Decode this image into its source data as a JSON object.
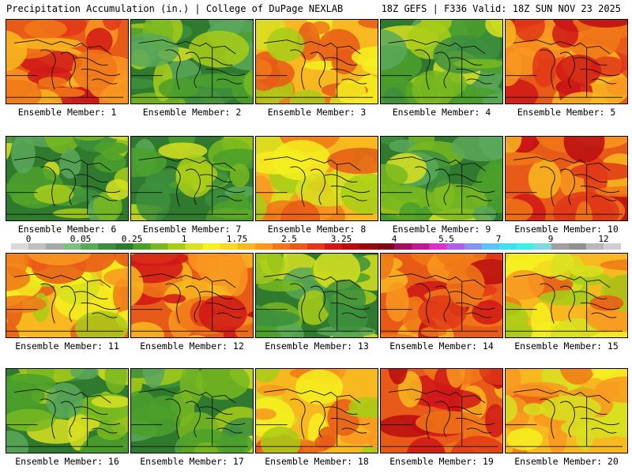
{
  "header": {
    "title": "Precipitation Accumulation (in.) | College of DuPage NEXLAB",
    "valid": "18Z GEFS | F336 Valid: 18Z SUN NOV 23 2025"
  },
  "colors": {
    "scale": [
      "#d8d8d8",
      "#c0c0c0",
      "#a8a8a8",
      "#7fbf7f",
      "#5aa85a",
      "#3d8f3d",
      "#2f7a2f",
      "#4ba02a",
      "#78b820",
      "#a8cc18",
      "#d8e020",
      "#f5f020",
      "#f8d820",
      "#f8b820",
      "#f89820",
      "#f07818",
      "#e85a18",
      "#e03818",
      "#d01818",
      "#b80c10",
      "#980808",
      "#800418",
      "#a0105a",
      "#c01890",
      "#d830c8",
      "#b060e8",
      "#8890f0",
      "#60c0f8",
      "#40e0f0",
      "#40f0e0",
      "#80d8e0",
      "#a0a0a0",
      "#909090",
      "#b8b8b8",
      "#d0d0d0"
    ]
  },
  "scale": {
    "labels": [
      "0",
      "0.05",
      "0.25",
      "1",
      "1.75",
      "2.5",
      "3.25",
      "4",
      "5.5",
      "7",
      "9",
      "12"
    ]
  },
  "members": [
    {
      "label": "Ensemble Member: 1",
      "palette": "red"
    },
    {
      "label": "Ensemble Member: 2",
      "palette": "green"
    },
    {
      "label": "Ensemble Member: 3",
      "palette": "orange"
    },
    {
      "label": "Ensemble Member: 4",
      "palette": "green"
    },
    {
      "label": "Ensemble Member: 5",
      "palette": "red"
    },
    {
      "label": "Ensemble Member: 6",
      "palette": "green"
    },
    {
      "label": "Ensemble Member: 7",
      "palette": "green"
    },
    {
      "label": "Ensemble Member: 8",
      "palette": "orange"
    },
    {
      "label": "Ensemble Member: 9",
      "palette": "green"
    },
    {
      "label": "Ensemble Member: 10",
      "palette": "red"
    },
    {
      "label": "Ensemble Member: 11",
      "palette": "orange"
    },
    {
      "label": "Ensemble Member: 12",
      "palette": "red"
    },
    {
      "label": "Ensemble Member: 13",
      "palette": "green"
    },
    {
      "label": "Ensemble Member: 14",
      "palette": "red"
    },
    {
      "label": "Ensemble Member: 15",
      "palette": "orange"
    },
    {
      "label": "Ensemble Member: 16",
      "palette": "green"
    },
    {
      "label": "Ensemble Member: 17",
      "palette": "green"
    },
    {
      "label": "Ensemble Member: 18",
      "palette": "orange"
    },
    {
      "label": "Ensemble Member: 19",
      "palette": "red"
    },
    {
      "label": "Ensemble Member: 20",
      "palette": "orange"
    }
  ]
}
